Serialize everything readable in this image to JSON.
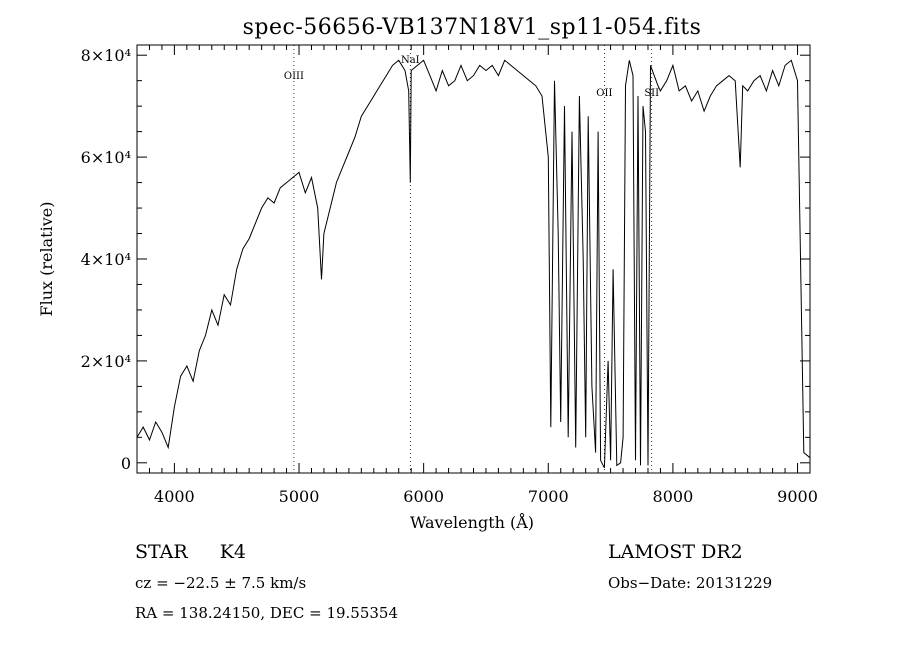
{
  "chart_data": {
    "type": "line",
    "title": "spec-56656-VB137N18V1_sp11-054.fits",
    "xlabel": "Wavelength (Å)",
    "ylabel": "Flux (relative)",
    "xlim": [
      3700,
      9100
    ],
    "ylim": [
      -2000,
      82000
    ],
    "x_ticks": [
      4000,
      5000,
      6000,
      7000,
      8000,
      9000
    ],
    "y_ticks": [
      {
        "value": 0,
        "label": "0"
      },
      {
        "value": 20000,
        "label": "2×10⁴"
      },
      {
        "value": 40000,
        "label": "4×10⁴"
      },
      {
        "value": 60000,
        "label": "6×10⁴"
      },
      {
        "value": 80000,
        "label": "8×10⁴"
      }
    ],
    "lines": [
      {
        "label": "OIII",
        "x": 4959
      },
      {
        "label": "NaI",
        "x": 5893
      },
      {
        "label": "OII",
        "x": 7450
      },
      {
        "label": "SII",
        "x": 7830
      }
    ],
    "series": [
      {
        "x": [
          3700,
          3750,
          3800,
          3850,
          3900,
          3950,
          4000,
          4050,
          4100,
          4150,
          4200,
          4250,
          4300,
          4350,
          4400,
          4450,
          4500,
          4550,
          4600,
          4650,
          4700,
          4750,
          4800,
          4850,
          4900,
          4950,
          5000,
          5050,
          5100,
          5150,
          5180,
          5200,
          5250,
          5300,
          5350,
          5400,
          5450,
          5500,
          5550,
          5600,
          5650,
          5700,
          5750,
          5800,
          5850,
          5880,
          5893,
          5900,
          5950,
          6000,
          6050,
          6100,
          6150,
          6200,
          6250,
          6300,
          6350,
          6400,
          6450,
          6500,
          6550,
          6600,
          6650,
          6700,
          6750,
          6800,
          6850,
          6900,
          6950,
          7000,
          7020,
          7050,
          7080,
          7100,
          7130,
          7160,
          7190,
          7220,
          7250,
          7280,
          7300,
          7320,
          7350,
          7380,
          7400,
          7420,
          7450,
          7480,
          7500,
          7520,
          7550,
          7580,
          7600,
          7620,
          7650,
          7680,
          7700,
          7720,
          7740,
          7760,
          7780,
          7800,
          7820,
          7850,
          7880,
          7900,
          7950,
          8000,
          8050,
          8100,
          8150,
          8200,
          8250,
          8300,
          8350,
          8400,
          8450,
          8500,
          8540,
          8560,
          8600,
          8650,
          8700,
          8750,
          8800,
          8850,
          8900,
          8950,
          9000,
          9050,
          9100
        ],
        "y": [
          5000,
          7000,
          4500,
          8000,
          6000,
          3000,
          11000,
          17000,
          19000,
          16000,
          22000,
          25000,
          30000,
          27000,
          33000,
          31000,
          38000,
          42000,
          44000,
          47000,
          50000,
          52000,
          51000,
          54000,
          55000,
          56000,
          57000,
          53000,
          56000,
          50000,
          36000,
          45000,
          50000,
          55000,
          58000,
          61000,
          64000,
          68000,
          70000,
          72000,
          74000,
          76000,
          78000,
          79000,
          77000,
          73000,
          55000,
          77000,
          78000,
          79000,
          76000,
          73000,
          77000,
          74000,
          75000,
          78000,
          75000,
          76000,
          78000,
          77000,
          78000,
          76000,
          79000,
          78000,
          77000,
          76000,
          75000,
          74000,
          72000,
          60000,
          7000,
          75000,
          45000,
          8000,
          70000,
          5000,
          65000,
          3000,
          72000,
          40000,
          5000,
          68000,
          15000,
          2000,
          65000,
          500,
          -1000,
          20000,
          500,
          38000,
          -500,
          0,
          5000,
          74000,
          79000,
          76000,
          500,
          72000,
          -500,
          70000,
          65000,
          -500,
          78000,
          76000,
          74000,
          73000,
          75000,
          78000,
          73000,
          74000,
          71000,
          73000,
          69000,
          72000,
          74000,
          75000,
          76000,
          75000,
          58000,
          74000,
          73000,
          75000,
          76000,
          73000,
          77000,
          74000,
          78000,
          79000,
          75000,
          2000,
          1000
        ]
      }
    ]
  },
  "info": {
    "object_class": "STAR",
    "subclass": "K4",
    "cz": "cz = −22.5 ± 7.5 km/s",
    "coords": "RA = 138.24150, DEC =  19.55354",
    "survey": "LAMOST DR2",
    "obs_date": "Obs−Date: 20131229"
  }
}
